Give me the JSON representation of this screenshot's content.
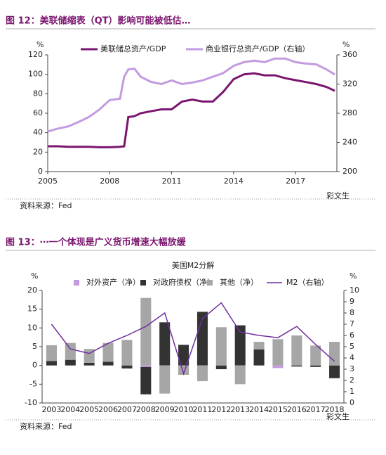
{
  "chart_data": [
    {
      "type": "line",
      "caption": "图 12：美联储缩表（QT）影响可能被低估…",
      "source": "资料来源：Fed",
      "watermark": "彩文生",
      "y_unit": "%",
      "y2_unit": "%",
      "x": [
        2005,
        2005.5,
        2006,
        2006.5,
        2007,
        2007.5,
        2008,
        2008.5,
        2008.7,
        2008.9,
        2009.2,
        2009.5,
        2010,
        2010.5,
        2011,
        2011.5,
        2012,
        2012.5,
        2013,
        2013.5,
        2014,
        2014.5,
        2015,
        2015.5,
        2016,
        2016.5,
        2017,
        2017.5,
        2018,
        2018.5,
        2018.9
      ],
      "xlim": [
        2005,
        2019
      ],
      "xticks": [
        2005,
        2008,
        2011,
        2014,
        2017
      ],
      "ylim": [
        0,
        120
      ],
      "yticks": [
        0,
        20,
        40,
        60,
        80,
        100,
        120
      ],
      "y2lim": [
        200,
        360
      ],
      "y2ticks": [
        200,
        240,
        280,
        320,
        360
      ],
      "series": [
        {
          "name": "美联储总资产/GDP",
          "color": "#7b1670",
          "values": [
            26,
            26,
            25.5,
            25.5,
            25.5,
            25,
            25,
            25.5,
            26,
            56,
            57,
            60,
            62,
            64,
            64,
            72,
            74,
            72,
            72,
            82,
            95,
            100,
            101,
            99,
            99,
            96,
            94,
            92,
            90,
            87,
            83
          ]
        },
        {
          "name": "商业银行总资产/GDP（右轴）",
          "color": "#c39be0",
          "axis": "y2",
          "values": [
            255,
            259,
            262,
            268,
            275,
            285,
            298,
            300,
            330,
            340,
            341,
            330,
            323,
            320,
            325,
            320,
            322,
            325,
            330,
            335,
            345,
            350,
            352,
            350,
            355,
            355,
            350,
            348,
            347,
            340,
            333
          ]
        }
      ]
    },
    {
      "type": "bar",
      "caption": "图 13：⋯一个体现是广义货币增速大幅放缓",
      "title": "美国M2分解",
      "source": "资料来源：Fed",
      "watermark": "彩文生",
      "y_unit": "%",
      "y2_unit": "%",
      "stacked": true,
      "categories": [
        "2003",
        "2004",
        "2005",
        "2006",
        "2007",
        "2008",
        "2009",
        "2010",
        "2011",
        "2012",
        "2013",
        "2014",
        "2015",
        "2016",
        "2017",
        "2018"
      ],
      "ylim": [
        -10,
        20
      ],
      "yticks": [
        -10,
        -5,
        0,
        5,
        10,
        15,
        20
      ],
      "y2lim": [
        0,
        10
      ],
      "y2ticks": [
        0,
        1,
        2,
        3,
        4,
        5,
        6,
        7,
        8,
        9,
        10
      ],
      "series": [
        {
          "name": "对外资产（净）",
          "color": "#c39be0",
          "values": [
            0,
            0,
            0,
            0,
            0,
            -0.4,
            0,
            0,
            0,
            0,
            0,
            0,
            -0.7,
            0,
            0,
            0
          ]
        },
        {
          "name": "对政府债权（净）",
          "color": "#333333",
          "values": [
            1.2,
            1.5,
            0.7,
            1.0,
            -0.8,
            -7.3,
            11.5,
            5.5,
            14.3,
            -1.0,
            10.7,
            4.3,
            0,
            -0.3,
            -0.4,
            -3.4
          ]
        },
        {
          "name": "其他（净）",
          "color": "#a6a6a6",
          "values": [
            4.2,
            4.5,
            3.7,
            5.0,
            6.8,
            18,
            -7.5,
            -2.5,
            -4.2,
            10.2,
            -5.0,
            2.0,
            7.0,
            8.0,
            5.3,
            6.3
          ]
        },
        {
          "name": "M2（右轴）",
          "color": "#7030a0",
          "type": "line",
          "axis": "y2",
          "values": [
            7.0,
            4.8,
            4.4,
            5.3,
            6.0,
            6.8,
            8.0,
            2.6,
            7.5,
            8.9,
            6.3,
            6.0,
            5.8,
            6.8,
            5.2,
            3.7
          ]
        }
      ]
    }
  ]
}
